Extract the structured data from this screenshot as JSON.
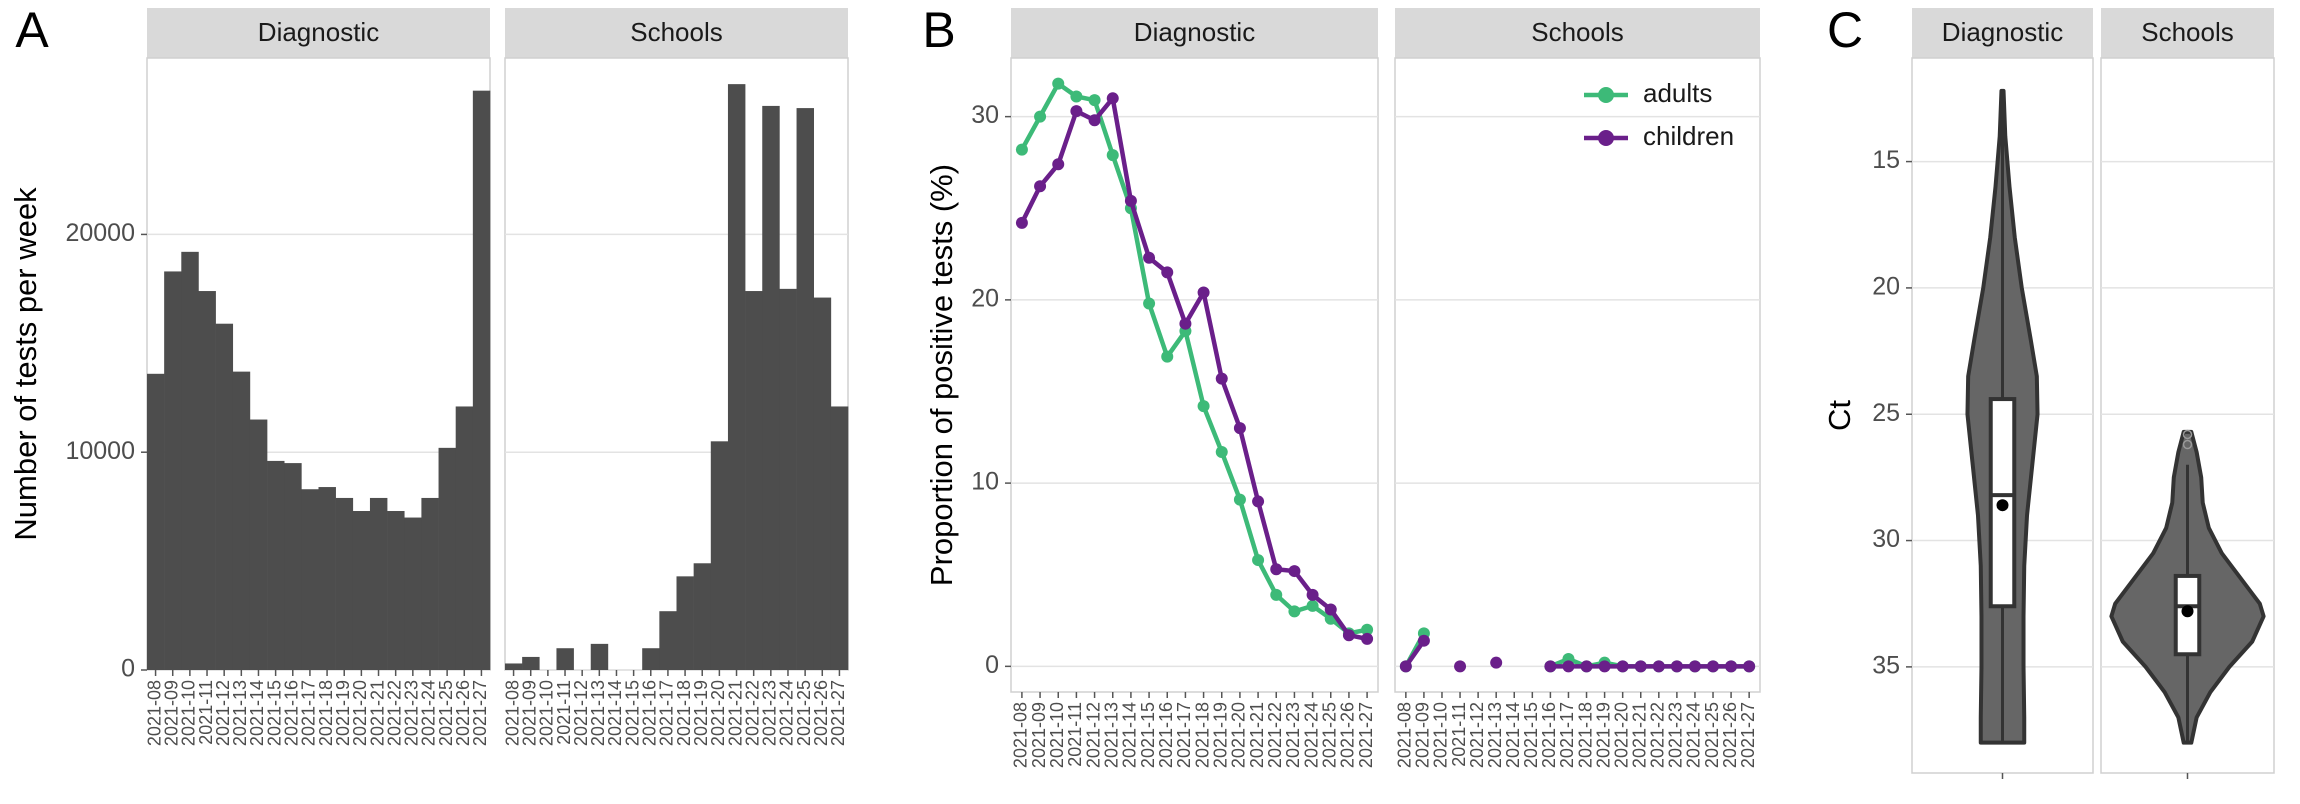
{
  "chart_data": [
    {
      "type": "bar",
      "panel": "A",
      "ylabel": "Number of tests per week",
      "title": "Diagnostic",
      "categories": [
        "2021-08",
        "2021-09",
        "2021-10",
        "2021-11",
        "2021-12",
        "2021-13",
        "2021-14",
        "2021-15",
        "2021-16",
        "2021-17",
        "2021-18",
        "2021-19",
        "2021-20",
        "2021-21",
        "2021-22",
        "2021-23",
        "2021-24",
        "2021-25",
        "2021-26",
        "2021-27"
      ],
      "values": [
        13600,
        18300,
        19200,
        17400,
        15900,
        13700,
        11500,
        9600,
        9500,
        8300,
        8400,
        7900,
        7300,
        7900,
        7300,
        7000,
        7900,
        10200,
        12100,
        26600
      ],
      "color": "#4d4d4d",
      "ylim": [
        0,
        28100
      ],
      "yticks": [
        0,
        10000,
        20000
      ],
      "grid": true
    },
    {
      "type": "bar",
      "title": "Schools",
      "categories": [
        "2021-08",
        "2021-09",
        "2021-10",
        "2021-11",
        "2021-12",
        "2021-13",
        "2021-14",
        "2021-15",
        "2021-16",
        "2021-17",
        "2021-18",
        "2021-19",
        "2021-20",
        "2021-21",
        "2021-22",
        "2021-23",
        "2021-24",
        "2021-25",
        "2021-26",
        "2021-27"
      ],
      "values": [
        300,
        600,
        0,
        1000,
        0,
        1200,
        0,
        0,
        1000,
        2700,
        4300,
        4900,
        10500,
        26900,
        17400,
        25900,
        17500,
        25800,
        17100,
        12100
      ],
      "color": "#4d4d4d",
      "ylim": [
        0,
        28100
      ],
      "yticks": [
        0,
        10000,
        20000
      ],
      "grid": true
    },
    {
      "type": "line",
      "panel": "B",
      "ylabel": "Proportion of positive tests (%)",
      "title": "Diagnostic",
      "categories": [
        "2021-08",
        "2021-09",
        "2021-10",
        "2021-11",
        "2021-12",
        "2021-13",
        "2021-14",
        "2021-15",
        "2021-16",
        "2021-17",
        "2021-18",
        "2021-19",
        "2021-20",
        "2021-21",
        "2021-22",
        "2021-23",
        "2021-24",
        "2021-25",
        "2021-26",
        "2021-27"
      ],
      "series": [
        {
          "color": "#3dba78",
          "values": [
            28.2,
            30.0,
            31.8,
            31.1,
            30.9,
            27.9,
            25.0,
            19.8,
            16.9,
            18.3,
            14.2,
            11.7,
            9.1,
            5.8,
            3.9,
            3.0,
            3.3,
            2.6,
            1.8,
            2.0
          ]
        },
        {
          "color": "#6a1f8a",
          "values": [
            24.2,
            26.2,
            27.4,
            30.3,
            29.8,
            31.0,
            25.4,
            22.3,
            21.5,
            18.7,
            20.4,
            15.7,
            13.0,
            9.0,
            5.3,
            5.2,
            3.9,
            3.1,
            1.7,
            1.5
          ]
        }
      ],
      "ylim": [
        -1.4,
        33.2
      ],
      "yticks": [
        0,
        10,
        20,
        30
      ],
      "grid": true
    },
    {
      "type": "line",
      "title": "Schools",
      "legend": "top-right",
      "categories": [
        "2021-08",
        "2021-09",
        "2021-10",
        "2021-11",
        "2021-12",
        "2021-13",
        "2021-14",
        "2021-15",
        "2021-16",
        "2021-17",
        "2021-18",
        "2021-19",
        "2021-20",
        "2021-21",
        "2021-22",
        "2021-23",
        "2021-24",
        "2021-25",
        "2021-26",
        "2021-27"
      ],
      "series": [
        {
          "name": "adults",
          "color": "#3dba78",
          "values": [
            0,
            1.8,
            null,
            null,
            null,
            null,
            null,
            null,
            0,
            0.4,
            0,
            0.2,
            0,
            0,
            0,
            0,
            0,
            0,
            0,
            0
          ]
        },
        {
          "name": "children",
          "color": "#6a1f8a",
          "values": [
            0,
            1.4,
            null,
            0,
            null,
            0.2,
            null,
            null,
            0,
            0,
            0,
            0,
            0,
            0,
            0,
            0,
            0,
            0,
            0,
            0
          ]
        }
      ],
      "ylim": [
        -1.4,
        33.2
      ],
      "yticks": [
        0,
        10,
        20,
        30
      ],
      "grid": true
    },
    {
      "type": "violin",
      "panel": "C",
      "ylabel": "Ct",
      "categories": [
        "Diagnostic",
        "Schools"
      ],
      "ylim": [
        10.9,
        39.2
      ],
      "reverse_y": true,
      "yticks": [
        15,
        20,
        25,
        30,
        35
      ],
      "grid": true,
      "color": "#666666",
      "boxes": [
        {
          "min": 12.2,
          "q1": 24.4,
          "median": 28.2,
          "q3": 32.6,
          "max": 38.0,
          "mean": 28.6,
          "outliers": [],
          "violin_y": [
            12.2,
            14,
            16,
            18,
            20,
            22,
            23.5,
            25,
            27,
            29,
            31,
            33,
            35,
            37,
            38
          ],
          "violin_width": [
            0.013,
            0.035,
            0.088,
            0.154,
            0.242,
            0.352,
            0.431,
            0.44,
            0.374,
            0.308,
            0.273,
            0.264,
            0.264,
            0.273,
            0.273
          ]
        },
        {
          "min": 27.0,
          "q1": 31.4,
          "median": 32.6,
          "q3": 34.5,
          "max": 38.0,
          "mean": 32.8,
          "outliers": [
            25.8,
            26.2
          ],
          "violin_y": [
            25.7,
            26.5,
            27.5,
            28.5,
            29.5,
            30.5,
            31.5,
            32.5,
            33,
            34,
            35,
            36,
            37,
            38
          ],
          "violin_width": [
            0.05,
            0.12,
            0.18,
            0.2,
            0.28,
            0.45,
            0.7,
            0.95,
            1.0,
            0.85,
            0.55,
            0.3,
            0.12,
            0.05
          ]
        }
      ]
    }
  ]
}
